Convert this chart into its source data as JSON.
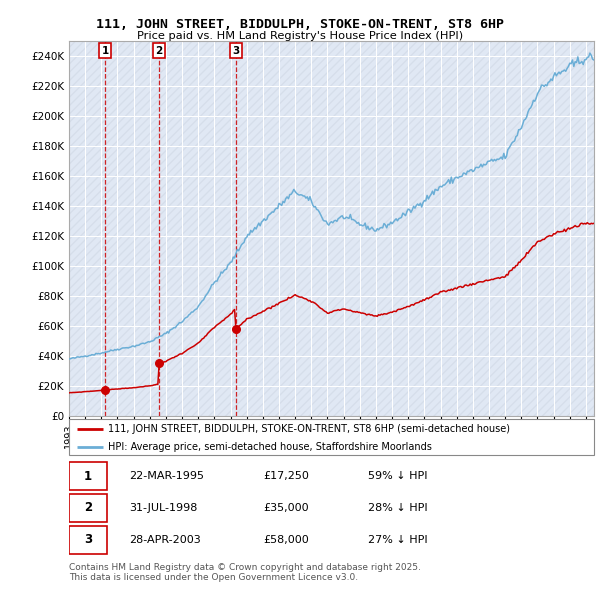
{
  "title1": "111, JOHN STREET, BIDDULPH, STOKE-ON-TRENT, ST8 6HP",
  "title2": "Price paid vs. HM Land Registry's House Price Index (HPI)",
  "transactions": [
    {
      "num": 1,
      "date_dec": 1995.23,
      "price": 17250,
      "label": "1"
    },
    {
      "num": 2,
      "date_dec": 1998.58,
      "price": 35000,
      "label": "2"
    },
    {
      "num": 3,
      "date_dec": 2003.33,
      "price": 58000,
      "label": "3"
    }
  ],
  "legend_line1": "111, JOHN STREET, BIDDULPH, STOKE-ON-TRENT, ST8 6HP (semi-detached house)",
  "legend_line2": "HPI: Average price, semi-detached house, Staffordshire Moorlands",
  "table_rows": [
    {
      "num": "1",
      "date": "22-MAR-1995",
      "price": "£17,250",
      "hpi": "59% ↓ HPI"
    },
    {
      "num": "2",
      "date": "31-JUL-1998",
      "price": "£35,000",
      "hpi": "28% ↓ HPI"
    },
    {
      "num": "3",
      "date": "28-APR-2003",
      "price": "£58,000",
      "hpi": "27% ↓ HPI"
    }
  ],
  "footer": "Contains HM Land Registry data © Crown copyright and database right 2025.\nThis data is licensed under the Open Government Licence v3.0.",
  "hpi_color": "#6baed6",
  "price_color": "#cc0000",
  "bg_plot": "#e8eef8",
  "bg_hatch_color": "#c8d4e8",
  "ylim": [
    0,
    250000
  ],
  "ytick_values": [
    0,
    20000,
    40000,
    60000,
    80000,
    100000,
    120000,
    140000,
    160000,
    180000,
    200000,
    220000,
    240000
  ],
  "ytick_labels": [
    "£0",
    "£20K",
    "£40K",
    "£60K",
    "£80K",
    "£100K",
    "£120K",
    "£140K",
    "£160K",
    "£180K",
    "£200K",
    "£220K",
    "£240K"
  ],
  "xlim_start": 1993.0,
  "xlim_end": 2025.5,
  "hpi_anchors": {
    "1993.0": 38000,
    "1994.0": 40000,
    "1995.0": 42000,
    "1996.0": 44500,
    "1997.0": 46500,
    "1998.0": 49500,
    "1999.0": 55000,
    "2000.0": 63000,
    "2001.0": 73000,
    "2002.0": 89000,
    "2003.0": 102000,
    "2004.0": 120000,
    "2005.0": 130000,
    "2006.0": 140000,
    "2007.0": 150000,
    "2008.0": 143000,
    "2009.0": 128000,
    "2010.0": 133000,
    "2011.0": 128000,
    "2012.0": 124000,
    "2013.0": 129000,
    "2014.0": 136000,
    "2015.0": 144000,
    "2016.0": 153000,
    "2017.0": 159000,
    "2018.0": 164000,
    "2019.0": 169000,
    "2020.0": 173000,
    "2021.0": 193000,
    "2022.0": 216000,
    "2023.0": 226000,
    "2024.0": 233000,
    "2025.0": 239000
  }
}
